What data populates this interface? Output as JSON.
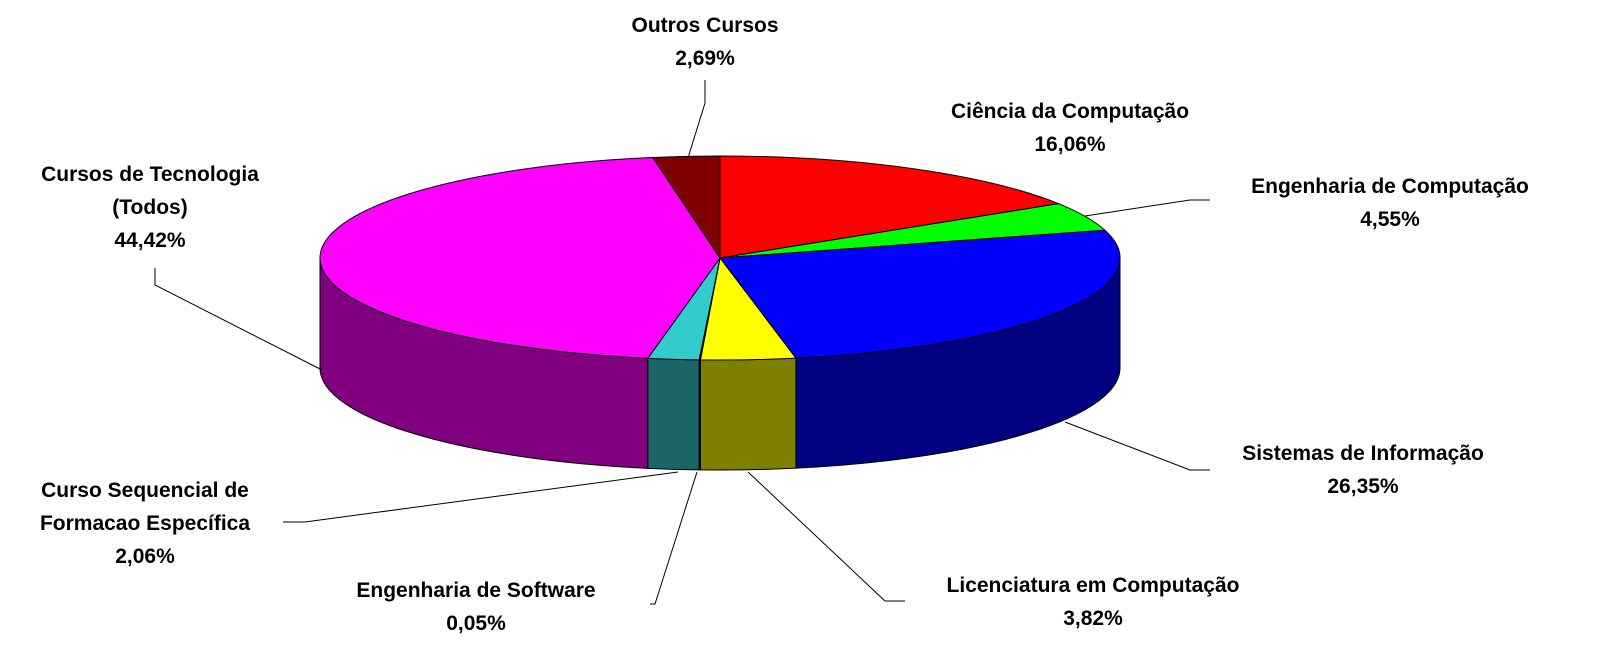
{
  "chart_data": {
    "type": "pie3d",
    "categories": [
      "Ciência da Computação",
      "Engenharia de Computação",
      "Sistemas de Informação",
      "Licenciatura em Computação",
      "Engenharia de Software",
      "Curso Sequencial de Formacao Específica",
      "Cursos de Tecnologia (Todos)",
      "Outros Cursos"
    ],
    "values": [
      16.06,
      4.55,
      26.35,
      3.82,
      0.05,
      2.06,
      44.42,
      2.69
    ],
    "value_labels": [
      "16,06%",
      "4,55%",
      "26,35%",
      "3,82%",
      "0,05%",
      "2,06%",
      "44,42%",
      "2,69%"
    ],
    "colors": [
      "#ff0000",
      "#00ff00",
      "#0000ff",
      "#ffff00",
      "#000080",
      "#33cccc",
      "#ff00ff",
      "#800000"
    ]
  }
}
